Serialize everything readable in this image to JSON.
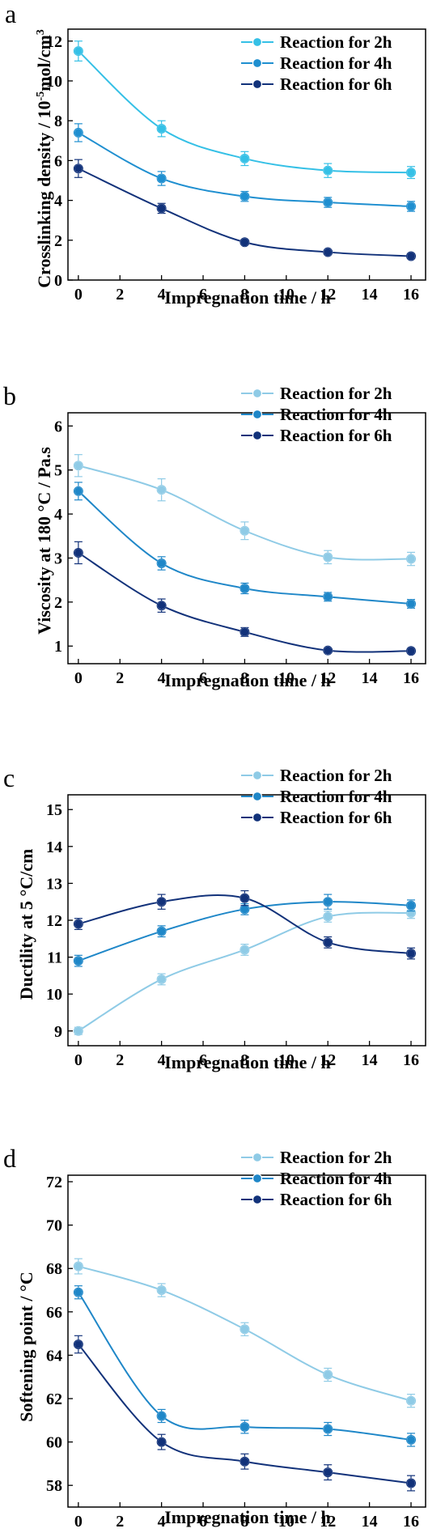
{
  "chart_data": [
    {
      "type": "line",
      "panel_label": "a",
      "xlabel": "Impregnation time / h",
      "ylabel": "Crosslinking density / 10",
      "ylabel_sup": "-5",
      "ylabel_mid": "mol/cm",
      "ylabel_sup2": "3",
      "xlim": [
        -0.5,
        16.7
      ],
      "ylim": [
        0,
        12.6
      ],
      "xticks": [
        0,
        2,
        4,
        6,
        8,
        10,
        12,
        14,
        16
      ],
      "yticks": [
        0,
        2,
        4,
        6,
        8,
        10,
        12
      ],
      "legend_position": "top-right",
      "x": [
        0,
        4,
        8,
        12,
        16
      ],
      "series": [
        {
          "name": "Reaction for 2h",
          "color": "#35c0e6",
          "values": [
            11.5,
            7.6,
            6.1,
            5.5,
            5.4
          ],
          "errors": [
            0.5,
            0.4,
            0.35,
            0.35,
            0.3
          ]
        },
        {
          "name": "Reaction for 4h",
          "color": "#1f8fd0",
          "values": [
            7.4,
            5.1,
            4.2,
            3.9,
            3.7
          ],
          "errors": [
            0.45,
            0.35,
            0.25,
            0.25,
            0.25
          ]
        },
        {
          "name": "Reaction for 6h",
          "color": "#12327a",
          "values": [
            5.6,
            3.6,
            1.9,
            1.4,
            1.2
          ],
          "errors": [
            0.45,
            0.25,
            0.1,
            0.1,
            0.08
          ]
        }
      ]
    },
    {
      "type": "line",
      "panel_label": "b",
      "xlabel": "Impregnation time / h",
      "ylabel": "Viscosity at 180 °C / Pa.s",
      "xlim": [
        -0.5,
        16.7
      ],
      "ylim": [
        0.6,
        6.3
      ],
      "xticks": [
        0,
        2,
        4,
        6,
        8,
        10,
        12,
        14,
        16
      ],
      "yticks": [
        1,
        2,
        3,
        4,
        5,
        6
      ],
      "legend_position": "top-right",
      "x": [
        0,
        4,
        8,
        12,
        16
      ],
      "series": [
        {
          "name": "Reaction for 2h",
          "color": "#8fcbe6",
          "values": [
            5.1,
            4.55,
            3.62,
            3.02,
            2.98
          ],
          "errors": [
            0.25,
            0.25,
            0.2,
            0.15,
            0.15
          ]
        },
        {
          "name": "Reaction for 4h",
          "color": "#1f87c8",
          "values": [
            4.52,
            2.88,
            2.31,
            2.12,
            1.96
          ],
          "errors": [
            0.2,
            0.15,
            0.12,
            0.1,
            0.1
          ]
        },
        {
          "name": "Reaction for 6h",
          "color": "#12327a",
          "values": [
            3.12,
            1.92,
            1.32,
            0.9,
            0.89
          ],
          "errors": [
            0.25,
            0.15,
            0.1,
            0.05,
            0.05
          ]
        }
      ]
    },
    {
      "type": "line",
      "panel_label": "c",
      "xlabel": "Impregnation time / h",
      "ylabel": "Ductility at 5 °C/cm",
      "xlim": [
        -0.5,
        16.7
      ],
      "ylim": [
        8.6,
        15.4
      ],
      "xticks": [
        0,
        2,
        4,
        6,
        8,
        10,
        12,
        14,
        16
      ],
      "yticks": [
        9,
        10,
        11,
        12,
        13,
        14,
        15
      ],
      "legend_position": "top-right",
      "x": [
        0,
        4,
        8,
        12,
        16
      ],
      "series": [
        {
          "name": "Reaction for 2h",
          "color": "#8fcbe6",
          "values": [
            9.0,
            10.4,
            11.2,
            12.1,
            12.2
          ],
          "errors": [
            0.1,
            0.15,
            0.15,
            0.15,
            0.15
          ]
        },
        {
          "name": "Reaction for 4h",
          "color": "#1f87c8",
          "values": [
            10.9,
            11.7,
            12.3,
            12.5,
            12.4
          ],
          "errors": [
            0.15,
            0.15,
            0.15,
            0.2,
            0.15
          ]
        },
        {
          "name": "Reaction for 6h",
          "color": "#12327a",
          "values": [
            11.9,
            12.5,
            12.6,
            11.4,
            11.1
          ],
          "errors": [
            0.15,
            0.2,
            0.2,
            0.15,
            0.15
          ]
        }
      ]
    },
    {
      "type": "line",
      "panel_label": "d",
      "xlabel": "Impregnation time / h",
      "ylabel": "Softening point  / °C",
      "xlim": [
        -0.5,
        16.7
      ],
      "ylim": [
        57,
        72.3
      ],
      "xticks": [
        0,
        2,
        4,
        6,
        8,
        10,
        12,
        14,
        16
      ],
      "yticks": [
        58,
        60,
        62,
        64,
        66,
        68,
        70,
        72
      ],
      "legend_position": "top-right",
      "x": [
        0,
        4,
        8,
        12,
        16
      ],
      "series": [
        {
          "name": "Reaction for 2h",
          "color": "#8fcbe6",
          "values": [
            68.1,
            67.0,
            65.2,
            63.1,
            61.9
          ],
          "errors": [
            0.35,
            0.3,
            0.3,
            0.3,
            0.3
          ]
        },
        {
          "name": "Reaction for 4h",
          "color": "#1f87c8",
          "values": [
            66.9,
            61.2,
            60.7,
            60.6,
            60.1
          ],
          "errors": [
            0.3,
            0.3,
            0.3,
            0.3,
            0.3
          ]
        },
        {
          "name": "Reaction for 6h",
          "color": "#12327a",
          "values": [
            64.5,
            60.0,
            59.1,
            58.6,
            58.1
          ],
          "errors": [
            0.4,
            0.35,
            0.35,
            0.35,
            0.35
          ]
        }
      ]
    }
  ]
}
